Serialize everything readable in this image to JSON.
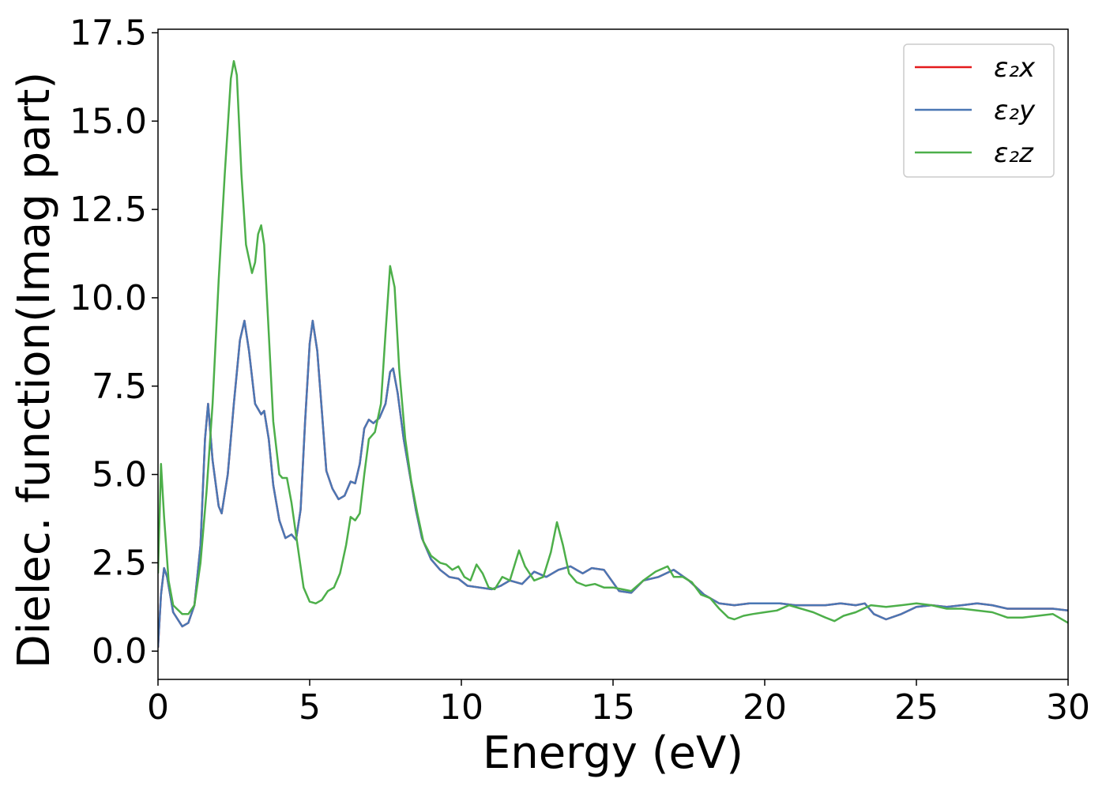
{
  "chart_data": {
    "type": "line",
    "title": "",
    "xlabel": "Energy (eV)",
    "ylabel": "Dielec. function(Imag part)",
    "xlim": [
      0,
      30
    ],
    "ylim": [
      -0.8,
      17.6
    ],
    "xticks": [
      0,
      5,
      10,
      15,
      20,
      25,
      30
    ],
    "xtick_labels": [
      "0",
      "5",
      "10",
      "15",
      "20",
      "25",
      "30"
    ],
    "yticks": [
      0,
      2.5,
      5,
      7.5,
      10,
      12.5,
      15,
      17.5
    ],
    "ytick_labels": [
      "0.0",
      "2.5",
      "5.0",
      "7.5",
      "10.0",
      "12.5",
      "15.0",
      "17.5"
    ],
    "grid": false,
    "legend_position": "top-right",
    "series": [
      {
        "name": "ε₂x",
        "color": "#e41a1c",
        "points": [
          [
            0,
            0.1
          ],
          [
            0.1,
            1.6
          ],
          [
            0.2,
            2.35
          ],
          [
            0.3,
            2.1
          ],
          [
            0.5,
            1.1
          ],
          [
            0.8,
            0.7
          ],
          [
            1.0,
            0.8
          ],
          [
            1.2,
            1.3
          ],
          [
            1.4,
            3.0
          ],
          [
            1.55,
            6.0
          ],
          [
            1.65,
            7.0
          ],
          [
            1.8,
            5.4
          ],
          [
            2.0,
            4.1
          ],
          [
            2.1,
            3.9
          ],
          [
            2.3,
            5.0
          ],
          [
            2.5,
            7.0
          ],
          [
            2.7,
            8.8
          ],
          [
            2.85,
            9.35
          ],
          [
            3.0,
            8.5
          ],
          [
            3.2,
            7.0
          ],
          [
            3.4,
            6.7
          ],
          [
            3.5,
            6.8
          ],
          [
            3.65,
            6.0
          ],
          [
            3.8,
            4.7
          ],
          [
            4.0,
            3.7
          ],
          [
            4.2,
            3.2
          ],
          [
            4.4,
            3.3
          ],
          [
            4.55,
            3.15
          ],
          [
            4.7,
            4.0
          ],
          [
            4.85,
            6.5
          ],
          [
            5.0,
            8.7
          ],
          [
            5.1,
            9.35
          ],
          [
            5.25,
            8.5
          ],
          [
            5.4,
            6.8
          ],
          [
            5.55,
            5.1
          ],
          [
            5.75,
            4.6
          ],
          [
            5.95,
            4.3
          ],
          [
            6.15,
            4.4
          ],
          [
            6.35,
            4.8
          ],
          [
            6.5,
            4.75
          ],
          [
            6.65,
            5.3
          ],
          [
            6.8,
            6.3
          ],
          [
            6.95,
            6.55
          ],
          [
            7.1,
            6.45
          ],
          [
            7.3,
            6.6
          ],
          [
            7.5,
            7.0
          ],
          [
            7.65,
            7.9
          ],
          [
            7.75,
            8.0
          ],
          [
            7.9,
            7.3
          ],
          [
            8.1,
            6.0
          ],
          [
            8.3,
            5.0
          ],
          [
            8.5,
            4.0
          ],
          [
            8.7,
            3.2
          ],
          [
            9.0,
            2.6
          ],
          [
            9.3,
            2.3
          ],
          [
            9.6,
            2.1
          ],
          [
            9.9,
            2.05
          ],
          [
            10.2,
            1.85
          ],
          [
            10.6,
            1.8
          ],
          [
            11.0,
            1.75
          ],
          [
            11.3,
            1.85
          ],
          [
            11.6,
            2.0
          ],
          [
            12.0,
            1.9
          ],
          [
            12.4,
            2.25
          ],
          [
            12.8,
            2.1
          ],
          [
            13.2,
            2.3
          ],
          [
            13.6,
            2.4
          ],
          [
            14.0,
            2.2
          ],
          [
            14.3,
            2.35
          ],
          [
            14.7,
            2.3
          ],
          [
            15.2,
            1.7
          ],
          [
            15.6,
            1.65
          ],
          [
            16.0,
            2.0
          ],
          [
            16.5,
            2.1
          ],
          [
            17.0,
            2.3
          ],
          [
            17.5,
            2.0
          ],
          [
            18.0,
            1.6
          ],
          [
            18.5,
            1.35
          ],
          [
            19.0,
            1.3
          ],
          [
            19.5,
            1.35
          ],
          [
            20.0,
            1.35
          ],
          [
            20.5,
            1.35
          ],
          [
            21.0,
            1.3
          ],
          [
            21.5,
            1.3
          ],
          [
            22.0,
            1.3
          ],
          [
            22.5,
            1.35
          ],
          [
            23.0,
            1.3
          ],
          [
            23.3,
            1.35
          ],
          [
            23.6,
            1.05
          ],
          [
            24.0,
            0.9
          ],
          [
            24.5,
            1.05
          ],
          [
            25.0,
            1.25
          ],
          [
            25.5,
            1.3
          ],
          [
            26.0,
            1.25
          ],
          [
            26.5,
            1.3
          ],
          [
            27.0,
            1.35
          ],
          [
            27.5,
            1.3
          ],
          [
            28.0,
            1.2
          ],
          [
            28.5,
            1.2
          ],
          [
            29.0,
            1.2
          ],
          [
            29.5,
            1.2
          ],
          [
            30.0,
            1.15
          ]
        ]
      },
      {
        "name": "ε₂y",
        "color": "#4a77b4",
        "points": [
          [
            0,
            0.1
          ],
          [
            0.1,
            1.6
          ],
          [
            0.2,
            2.35
          ],
          [
            0.3,
            2.1
          ],
          [
            0.5,
            1.1
          ],
          [
            0.8,
            0.7
          ],
          [
            1.0,
            0.8
          ],
          [
            1.2,
            1.3
          ],
          [
            1.4,
            3.0
          ],
          [
            1.55,
            6.0
          ],
          [
            1.65,
            7.0
          ],
          [
            1.8,
            5.4
          ],
          [
            2.0,
            4.1
          ],
          [
            2.1,
            3.9
          ],
          [
            2.3,
            5.0
          ],
          [
            2.5,
            7.0
          ],
          [
            2.7,
            8.8
          ],
          [
            2.85,
            9.35
          ],
          [
            3.0,
            8.5
          ],
          [
            3.2,
            7.0
          ],
          [
            3.4,
            6.7
          ],
          [
            3.5,
            6.8
          ],
          [
            3.65,
            6.0
          ],
          [
            3.8,
            4.7
          ],
          [
            4.0,
            3.7
          ],
          [
            4.2,
            3.2
          ],
          [
            4.4,
            3.3
          ],
          [
            4.55,
            3.15
          ],
          [
            4.7,
            4.0
          ],
          [
            4.85,
            6.5
          ],
          [
            5.0,
            8.7
          ],
          [
            5.1,
            9.35
          ],
          [
            5.25,
            8.5
          ],
          [
            5.4,
            6.8
          ],
          [
            5.55,
            5.1
          ],
          [
            5.75,
            4.6
          ],
          [
            5.95,
            4.3
          ],
          [
            6.15,
            4.4
          ],
          [
            6.35,
            4.8
          ],
          [
            6.5,
            4.75
          ],
          [
            6.65,
            5.3
          ],
          [
            6.8,
            6.3
          ],
          [
            6.95,
            6.55
          ],
          [
            7.1,
            6.45
          ],
          [
            7.3,
            6.6
          ],
          [
            7.5,
            7.0
          ],
          [
            7.65,
            7.9
          ],
          [
            7.75,
            8.0
          ],
          [
            7.9,
            7.3
          ],
          [
            8.1,
            6.0
          ],
          [
            8.3,
            5.0
          ],
          [
            8.5,
            4.0
          ],
          [
            8.7,
            3.2
          ],
          [
            9.0,
            2.6
          ],
          [
            9.3,
            2.3
          ],
          [
            9.6,
            2.1
          ],
          [
            9.9,
            2.05
          ],
          [
            10.2,
            1.85
          ],
          [
            10.6,
            1.8
          ],
          [
            11.0,
            1.75
          ],
          [
            11.3,
            1.85
          ],
          [
            11.6,
            2.0
          ],
          [
            12.0,
            1.9
          ],
          [
            12.4,
            2.25
          ],
          [
            12.8,
            2.1
          ],
          [
            13.2,
            2.3
          ],
          [
            13.6,
            2.4
          ],
          [
            14.0,
            2.2
          ],
          [
            14.3,
            2.35
          ],
          [
            14.7,
            2.3
          ],
          [
            15.2,
            1.7
          ],
          [
            15.6,
            1.65
          ],
          [
            16.0,
            2.0
          ],
          [
            16.5,
            2.1
          ],
          [
            17.0,
            2.3
          ],
          [
            17.5,
            2.0
          ],
          [
            18.0,
            1.6
          ],
          [
            18.5,
            1.35
          ],
          [
            19.0,
            1.3
          ],
          [
            19.5,
            1.35
          ],
          [
            20.0,
            1.35
          ],
          [
            20.5,
            1.35
          ],
          [
            21.0,
            1.3
          ],
          [
            21.5,
            1.3
          ],
          [
            22.0,
            1.3
          ],
          [
            22.5,
            1.35
          ],
          [
            23.0,
            1.3
          ],
          [
            23.3,
            1.35
          ],
          [
            23.6,
            1.05
          ],
          [
            24.0,
            0.9
          ],
          [
            24.5,
            1.05
          ],
          [
            25.0,
            1.25
          ],
          [
            25.5,
            1.3
          ],
          [
            26.0,
            1.25
          ],
          [
            26.5,
            1.3
          ],
          [
            27.0,
            1.35
          ],
          [
            27.5,
            1.3
          ],
          [
            28.0,
            1.2
          ],
          [
            28.5,
            1.2
          ],
          [
            29.0,
            1.2
          ],
          [
            29.5,
            1.2
          ],
          [
            30.0,
            1.15
          ]
        ]
      },
      {
        "name": "ε₂z",
        "color": "#4daf4a",
        "points": [
          [
            0,
            2.2
          ],
          [
            0.1,
            5.3
          ],
          [
            0.2,
            3.8
          ],
          [
            0.35,
            2.0
          ],
          [
            0.5,
            1.3
          ],
          [
            0.8,
            1.05
          ],
          [
            1.0,
            1.05
          ],
          [
            1.2,
            1.3
          ],
          [
            1.4,
            2.5
          ],
          [
            1.6,
            4.5
          ],
          [
            1.8,
            7.0
          ],
          [
            2.0,
            10.5
          ],
          [
            2.2,
            13.5
          ],
          [
            2.4,
            16.2
          ],
          [
            2.5,
            16.7
          ],
          [
            2.6,
            16.3
          ],
          [
            2.75,
            13.5
          ],
          [
            2.9,
            11.5
          ],
          [
            3.1,
            10.7
          ],
          [
            3.2,
            11.0
          ],
          [
            3.3,
            11.8
          ],
          [
            3.4,
            12.05
          ],
          [
            3.5,
            11.5
          ],
          [
            3.65,
            9.0
          ],
          [
            3.8,
            6.5
          ],
          [
            4.0,
            5.0
          ],
          [
            4.1,
            4.9
          ],
          [
            4.25,
            4.9
          ],
          [
            4.4,
            4.2
          ],
          [
            4.6,
            3.0
          ],
          [
            4.8,
            1.8
          ],
          [
            5.0,
            1.4
          ],
          [
            5.2,
            1.35
          ],
          [
            5.4,
            1.45
          ],
          [
            5.6,
            1.7
          ],
          [
            5.8,
            1.8
          ],
          [
            6.0,
            2.2
          ],
          [
            6.2,
            3.0
          ],
          [
            6.35,
            3.8
          ],
          [
            6.5,
            3.7
          ],
          [
            6.65,
            3.9
          ],
          [
            6.8,
            5.0
          ],
          [
            6.95,
            6.0
          ],
          [
            7.15,
            6.2
          ],
          [
            7.35,
            7.0
          ],
          [
            7.5,
            9.0
          ],
          [
            7.65,
            10.9
          ],
          [
            7.8,
            10.3
          ],
          [
            7.95,
            8.0
          ],
          [
            8.15,
            6.0
          ],
          [
            8.35,
            4.8
          ],
          [
            8.55,
            3.9
          ],
          [
            8.75,
            3.1
          ],
          [
            9.0,
            2.7
          ],
          [
            9.3,
            2.5
          ],
          [
            9.5,
            2.45
          ],
          [
            9.7,
            2.3
          ],
          [
            9.9,
            2.4
          ],
          [
            10.1,
            2.1
          ],
          [
            10.3,
            2.0
          ],
          [
            10.5,
            2.45
          ],
          [
            10.7,
            2.2
          ],
          [
            10.9,
            1.8
          ],
          [
            11.1,
            1.75
          ],
          [
            11.35,
            2.1
          ],
          [
            11.6,
            2.0
          ],
          [
            11.9,
            2.85
          ],
          [
            12.1,
            2.4
          ],
          [
            12.4,
            2.0
          ],
          [
            12.7,
            2.1
          ],
          [
            12.95,
            2.8
          ],
          [
            13.15,
            3.65
          ],
          [
            13.35,
            3.0
          ],
          [
            13.55,
            2.2
          ],
          [
            13.8,
            1.95
          ],
          [
            14.1,
            1.85
          ],
          [
            14.4,
            1.9
          ],
          [
            14.7,
            1.8
          ],
          [
            15.0,
            1.8
          ],
          [
            15.3,
            1.75
          ],
          [
            15.6,
            1.7
          ],
          [
            16.0,
            2.0
          ],
          [
            16.4,
            2.25
          ],
          [
            16.8,
            2.4
          ],
          [
            17.0,
            2.1
          ],
          [
            17.3,
            2.1
          ],
          [
            17.6,
            1.95
          ],
          [
            17.9,
            1.6
          ],
          [
            18.2,
            1.5
          ],
          [
            18.5,
            1.2
          ],
          [
            18.8,
            0.95
          ],
          [
            19.0,
            0.9
          ],
          [
            19.3,
            1.0
          ],
          [
            19.6,
            1.05
          ],
          [
            20.0,
            1.1
          ],
          [
            20.4,
            1.15
          ],
          [
            20.8,
            1.3
          ],
          [
            21.2,
            1.2
          ],
          [
            21.6,
            1.1
          ],
          [
            22.0,
            0.95
          ],
          [
            22.3,
            0.85
          ],
          [
            22.6,
            1.0
          ],
          [
            23.0,
            1.1
          ],
          [
            23.5,
            1.3
          ],
          [
            24.0,
            1.25
          ],
          [
            24.5,
            1.3
          ],
          [
            25.0,
            1.35
          ],
          [
            25.5,
            1.3
          ],
          [
            26.0,
            1.2
          ],
          [
            26.5,
            1.2
          ],
          [
            27.0,
            1.15
          ],
          [
            27.5,
            1.1
          ],
          [
            28.0,
            0.95
          ],
          [
            28.5,
            0.95
          ],
          [
            29.0,
            1.0
          ],
          [
            29.5,
            1.05
          ],
          [
            30.0,
            0.8
          ]
        ]
      }
    ]
  }
}
